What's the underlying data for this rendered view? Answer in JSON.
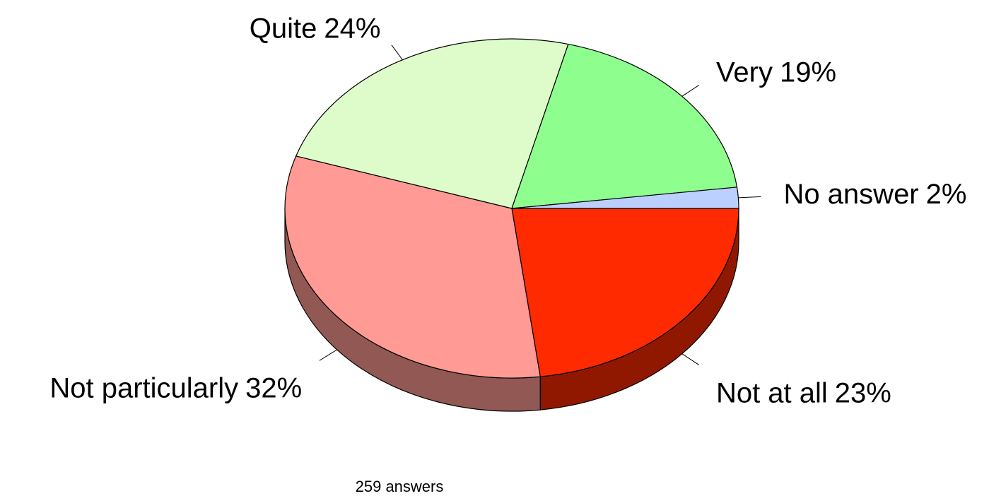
{
  "chart_data": {
    "type": "pie",
    "three_d": true,
    "categories": [
      "Not at all",
      "Not particularly",
      "Quite",
      "Very",
      "No answer"
    ],
    "values": [
      23,
      32,
      24,
      19,
      2
    ],
    "value_labels": [
      "23%",
      "32%",
      "24%",
      "19%",
      "2%"
    ],
    "colors": [
      "#ff2a00",
      "#ff9a94",
      "#ddfcca",
      "#8eff8e",
      "#bcd0ff"
    ],
    "annotation": "259 answers"
  }
}
